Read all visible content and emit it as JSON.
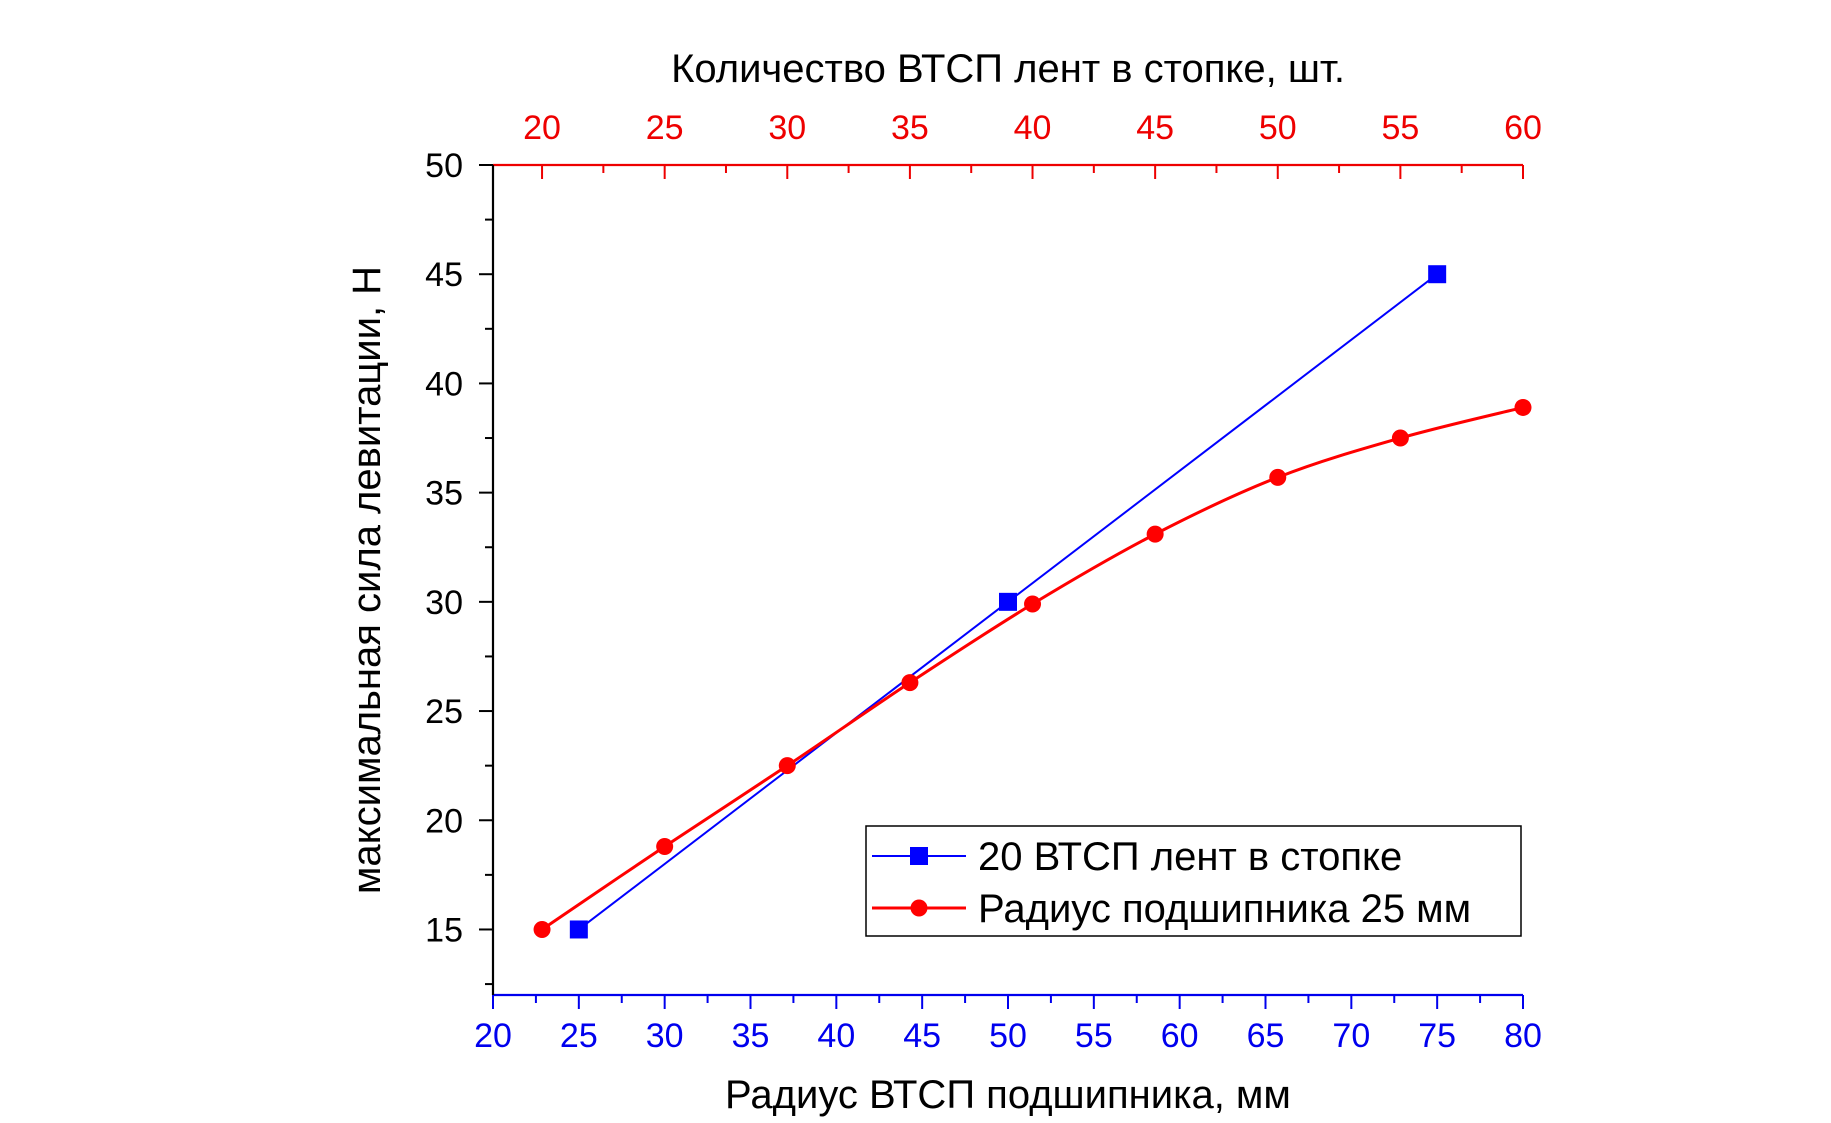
{
  "chart_data": {
    "type": "line",
    "title": "",
    "xlabel": "Радиус ВТСП подшипника, мм",
    "x2label": "Количество ВТСП лент в стопке, шт.",
    "ylabel": "максимальная сила левитации, Н",
    "xlim": [
      20,
      80
    ],
    "x2lim": [
      18,
      60
    ],
    "ylim": [
      12,
      50
    ],
    "x_ticks": [
      20,
      25,
      30,
      35,
      40,
      45,
      50,
      55,
      60,
      65,
      70,
      75,
      80
    ],
    "x2_ticks": [
      20,
      25,
      30,
      35,
      40,
      45,
      50,
      55,
      60
    ],
    "y_ticks": [
      15,
      20,
      25,
      30,
      35,
      40,
      45,
      50
    ],
    "grid": false,
    "legend_position": "bottom-right",
    "colors": {
      "bottom_axis": "#0000ee",
      "top_axis": "#ee0000",
      "left_axis": "#000000",
      "series_blue": "#0000ff",
      "series_red": "#ff0000"
    },
    "series": [
      {
        "name": "20 ВТСП лент в стопке",
        "axis": "bottom",
        "marker": "square",
        "color": "#0000ff",
        "smooth": false,
        "x": [
          25,
          50,
          75
        ],
        "y": [
          15,
          30,
          45
        ]
      },
      {
        "name": "Радиус подшипника 25 мм",
        "axis": "top",
        "marker": "circle",
        "color": "#ff0000",
        "smooth": true,
        "x": [
          20,
          25,
          30,
          35,
          40,
          45,
          50,
          55,
          60
        ],
        "y": [
          15.0,
          18.8,
          22.5,
          26.3,
          29.9,
          33.1,
          35.7,
          37.5,
          38.9
        ]
      }
    ]
  }
}
